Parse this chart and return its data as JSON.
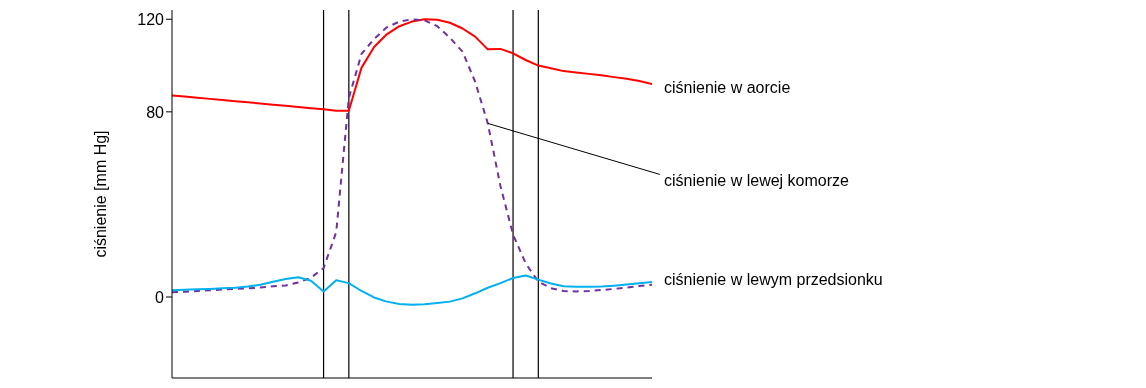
{
  "chart_data": {
    "type": "line",
    "ylabel": "ciśnienie [mm Hg]",
    "categories": [
      null,
      null,
      null,
      null,
      null,
      null,
      null,
      null,
      null,
      null,
      null,
      null,
      null,
      null,
      null,
      null,
      null,
      null,
      null,
      null,
      null,
      null,
      null,
      null,
      null,
      null,
      null,
      null,
      null,
      null,
      null,
      null,
      null,
      null,
      null,
      null,
      null,
      null,
      null
    ],
    "ylim": [
      -35,
      124
    ],
    "yticks": [
      0,
      80,
      120
    ],
    "tick_labels": "y",
    "legend": false,
    "marker": "none",
    "grid": "x",
    "series": [
      {
        "name": "ciśnienie w aorcie",
        "color": "#ff0000",
        "line_style": "solid",
        "values": [
          87.1,
          86.6,
          86.1,
          85.6,
          85.1,
          84.6,
          84.1,
          83.6,
          83.1,
          82.6,
          82.1,
          81.6,
          81.1,
          80.5,
          80.5,
          99,
          108,
          113.5,
          117,
          119,
          120,
          119.8,
          118.5,
          116,
          112.5,
          107,
          107.2,
          105.3,
          102.4,
          100,
          98.8,
          97.6,
          97,
          96.4,
          95.8,
          95,
          94.3,
          93.3,
          92
        ]
      },
      {
        "name": "ciśnienie w lewej komorze",
        "color": "#7030a0",
        "line_style": "dashed",
        "values": [
          2.0,
          2.3,
          2.6,
          2.9,
          3.2,
          3.5,
          3.7,
          4.1,
          4.6,
          5.0,
          6.3,
          8.3,
          12.5,
          28,
          86,
          105,
          111.5,
          116.5,
          119,
          120,
          119.5,
          117,
          112,
          106,
          93,
          75,
          48,
          27,
          14.5,
          6.7,
          3.8,
          2.6,
          2.4,
          2.6,
          3.0,
          3.5,
          4.1,
          4.7,
          5.3
        ]
      },
      {
        "name": "ciśnienie w lewym przedsionku",
        "color": "#00b0f0",
        "line_style": "solid",
        "values": [
          2.9,
          3.1,
          3.3,
          3.5,
          3.8,
          4.0,
          4.5,
          5.3,
          6.6,
          7.8,
          8.5,
          7.0,
          2.4,
          7.2,
          6.0,
          2.6,
          -0.2,
          -2.0,
          -3.0,
          -3.3,
          -3.1,
          -2.6,
          -2.0,
          -0.6,
          1.6,
          4.0,
          6.0,
          8.2,
          9.3,
          7.5,
          5.8,
          4.6,
          4.4,
          4.4,
          4.5,
          4.9,
          5.4,
          5.9,
          6.5
        ]
      }
    ]
  }
}
